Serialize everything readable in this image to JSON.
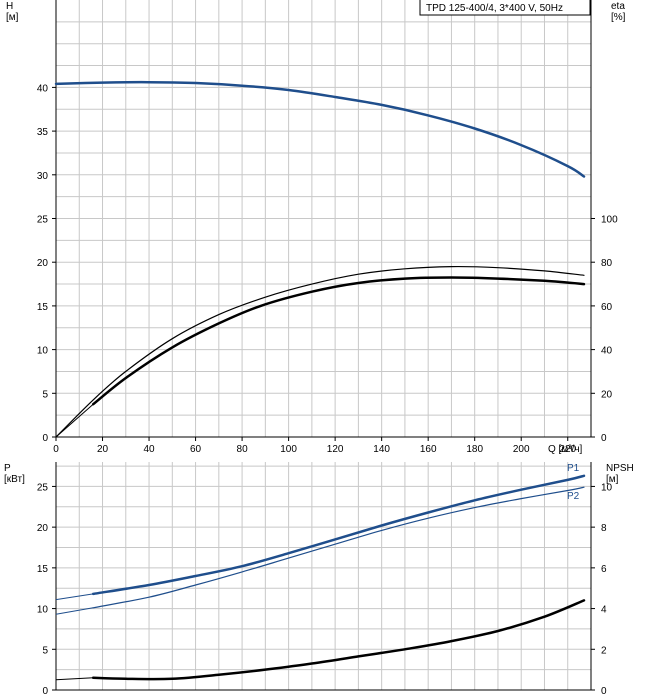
{
  "legend_text": "TPD 125-400/4, 3*400 V, 50Hz",
  "colors": {
    "blue": "#1f4e8c",
    "black": "#000000",
    "grid": "#c8c8c8"
  },
  "chart_data": [
    {
      "type": "line",
      "name": "head-efficiency-chart",
      "x_axis": {
        "label": "Q [м³/ч]",
        "min": 0,
        "max": 230,
        "ticks": [
          0,
          20,
          40,
          60,
          80,
          100,
          120,
          140,
          160,
          180,
          200,
          220
        ]
      },
      "left_axis": {
        "label_line1": "H",
        "label_line2": "[м]",
        "min": 0,
        "max": 50,
        "ticks": [
          0,
          5,
          10,
          15,
          20,
          25,
          30,
          35,
          40
        ]
      },
      "right_axis": {
        "label_line1": "eta",
        "label_line2": "[%]",
        "min": 0,
        "max": 200,
        "ticks": [
          0,
          20,
          40,
          60,
          80,
          100
        ]
      },
      "series": [
        {
          "name": "H",
          "axis": "left",
          "color": "blue",
          "width": 2.5,
          "dashed_to": 0,
          "x": [
            0,
            20,
            40,
            60,
            80,
            100,
            120,
            140,
            160,
            180,
            200,
            220,
            227
          ],
          "y": [
            40.4,
            40.55,
            40.6,
            40.5,
            40.2,
            39.7,
            38.9,
            38.0,
            36.8,
            35.3,
            33.4,
            31.0,
            29.8
          ]
        },
        {
          "name": "eta_thin",
          "axis": "right",
          "color": "black",
          "width": 1.2,
          "dashed_to": 0,
          "x": [
            0,
            16,
            30,
            50,
            70,
            90,
            110,
            130,
            150,
            170,
            190,
            210,
            227
          ],
          "y": [
            0,
            17,
            30,
            45,
            56,
            64,
            70,
            74.5,
            77,
            78,
            77.5,
            76,
            74
          ]
        },
        {
          "name": "eta_thick",
          "axis": "right",
          "color": "black",
          "width": 2.5,
          "dashed_to": 16,
          "x": [
            0,
            16,
            30,
            50,
            70,
            88,
            110,
            130,
            150,
            170,
            190,
            210,
            227
          ],
          "y": [
            0,
            15,
            27,
            41,
            52,
            60,
            66.5,
            70.5,
            72.5,
            73,
            72.5,
            71.5,
            70
          ]
        }
      ]
    },
    {
      "type": "line",
      "name": "power-npsh-chart",
      "x_axis": {
        "label": "",
        "min": 0,
        "max": 230,
        "ticks": []
      },
      "left_axis": {
        "label_line1": "P",
        "label_line2": "[кВт]",
        "min": 0,
        "max": 28,
        "ticks": [
          0,
          5,
          10,
          15,
          20,
          25
        ]
      },
      "right_axis": {
        "label_line1": "NPSH",
        "label_line2": "[м]",
        "min": 0,
        "max": 11.2,
        "ticks": [
          0,
          2,
          4,
          6,
          8,
          10
        ]
      },
      "series": [
        {
          "name": "P1",
          "axis": "left",
          "color": "blue",
          "width": 2.5,
          "dashed_to": 16,
          "label": "P1",
          "x": [
            0,
            16,
            40,
            60,
            80,
            100,
            120,
            140,
            160,
            180,
            200,
            220,
            227
          ],
          "y": [
            11.1,
            11.8,
            12.9,
            14.0,
            15.2,
            16.8,
            18.5,
            20.2,
            21.8,
            23.3,
            24.6,
            25.8,
            26.3
          ]
        },
        {
          "name": "P2",
          "axis": "left",
          "color": "blue",
          "width": 1.2,
          "dashed_to": 16,
          "label": "P2",
          "x": [
            0,
            16,
            40,
            60,
            80,
            100,
            120,
            140,
            160,
            180,
            200,
            220,
            227
          ],
          "y": [
            9.3,
            10.1,
            11.4,
            12.9,
            14.5,
            16.2,
            17.9,
            19.6,
            21.1,
            22.4,
            23.5,
            24.5,
            24.9
          ]
        },
        {
          "name": "NPSH",
          "axis": "right",
          "color": "black",
          "width": 2.5,
          "dashed_to": 16,
          "x": [
            0,
            16,
            30,
            50,
            70,
            90,
            110,
            130,
            150,
            170,
            190,
            210,
            227
          ],
          "y": [
            0.5,
            0.6,
            0.55,
            0.55,
            0.75,
            1.0,
            1.3,
            1.65,
            2.0,
            2.4,
            2.9,
            3.6,
            4.4
          ]
        }
      ]
    }
  ]
}
